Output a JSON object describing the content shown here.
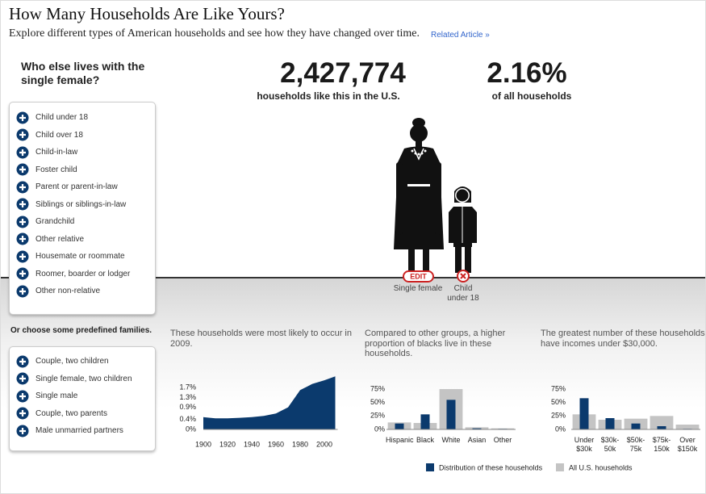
{
  "header": {
    "title": "How Many Households Are Like Yours?",
    "subtitle": "Explore different types of American households and see how they have changed over time.",
    "link": "Related Article »"
  },
  "question": "Who else lives with the single female?",
  "options": [
    "Child under 18",
    "Child over 18",
    "Child-in-law",
    "Foster child",
    "Parent or parent-in-law",
    "Siblings or siblings-in-law",
    "Grandchild",
    "Other relative",
    "Housemate or roommate",
    "Roomer, boarder or lodger",
    "Other non-relative"
  ],
  "stats": [
    {
      "value": "2,427,774",
      "label": "households like this in the U.S."
    },
    {
      "value": "2.16%",
      "label": "of all households"
    }
  ],
  "figures": {
    "edit": "EDIT",
    "members": [
      "Single female",
      "Child under 18"
    ]
  },
  "predefined": {
    "title": "Or choose some predefined families.",
    "options": [
      "Couple, two children",
      "Single female, two children",
      "Single male",
      "Couple, two parents",
      "Male unmarried partners"
    ]
  },
  "chart_data": [
    {
      "type": "area",
      "title": "These households were most likely to occur in 2009.",
      "x": [
        1900,
        1910,
        1920,
        1930,
        1940,
        1950,
        1960,
        1970,
        1980,
        1990,
        2000,
        2009
      ],
      "values": [
        0.5,
        0.45,
        0.45,
        0.47,
        0.5,
        0.55,
        0.65,
        0.9,
        1.6,
        1.85,
        2.0,
        2.16
      ],
      "color": "#0b3a6d",
      "xlim": [
        1900,
        2009
      ],
      "xticks": [
        1900,
        1920,
        1940,
        1960,
        1980,
        2000
      ],
      "ylim": [
        0,
        2.2
      ],
      "yticks": [
        {
          "value": 0,
          "label": "0%"
        },
        {
          "value": 0.4,
          "label": "0.4%"
        },
        {
          "value": 0.9,
          "label": "0.9%"
        },
        {
          "value": 1.3,
          "label": "1.3%"
        },
        {
          "value": 1.7,
          "label": "1.7%"
        }
      ]
    },
    {
      "type": "bar",
      "title": "Compared to other groups, a higher proportion of blacks live in these households.",
      "categories": [
        "Hispanic",
        "Black",
        "White",
        "Asian",
        "Other"
      ],
      "series": [
        {
          "name": "Distribution of these households",
          "color": "#0b3a6d",
          "values": [
            11,
            28,
            55,
            2,
            1
          ]
        },
        {
          "name": "All U.S. households",
          "color": "#c4c4c4",
          "values": [
            13,
            12,
            75,
            4,
            2
          ]
        }
      ],
      "ylim": [
        0,
        75
      ],
      "yticks": [
        {
          "value": 0,
          "label": "0%"
        },
        {
          "value": 25,
          "label": "25%"
        },
        {
          "value": 50,
          "label": "50%"
        },
        {
          "value": 75,
          "label": "75%"
        }
      ]
    },
    {
      "type": "bar",
      "title": "The greatest number of these households have incomes under $30,000.",
      "categories": [
        "Under $30k",
        "$30k- 50k",
        "$50k- 75k",
        "$75k- 150k",
        "Over $150k"
      ],
      "series": [
        {
          "color": "#0b3a6d",
          "values": [
            58,
            21,
            11,
            6,
            1
          ]
        },
        {
          "color": "#c4c4c4",
          "values": [
            28,
            18,
            20,
            25,
            9
          ]
        }
      ],
      "ylim": [
        0,
        75
      ],
      "yticks": [
        {
          "value": 0,
          "label": "0%"
        },
        {
          "value": 25,
          "label": "25%"
        },
        {
          "value": 50,
          "label": "50%"
        },
        {
          "value": 75,
          "label": "75%"
        }
      ]
    }
  ]
}
